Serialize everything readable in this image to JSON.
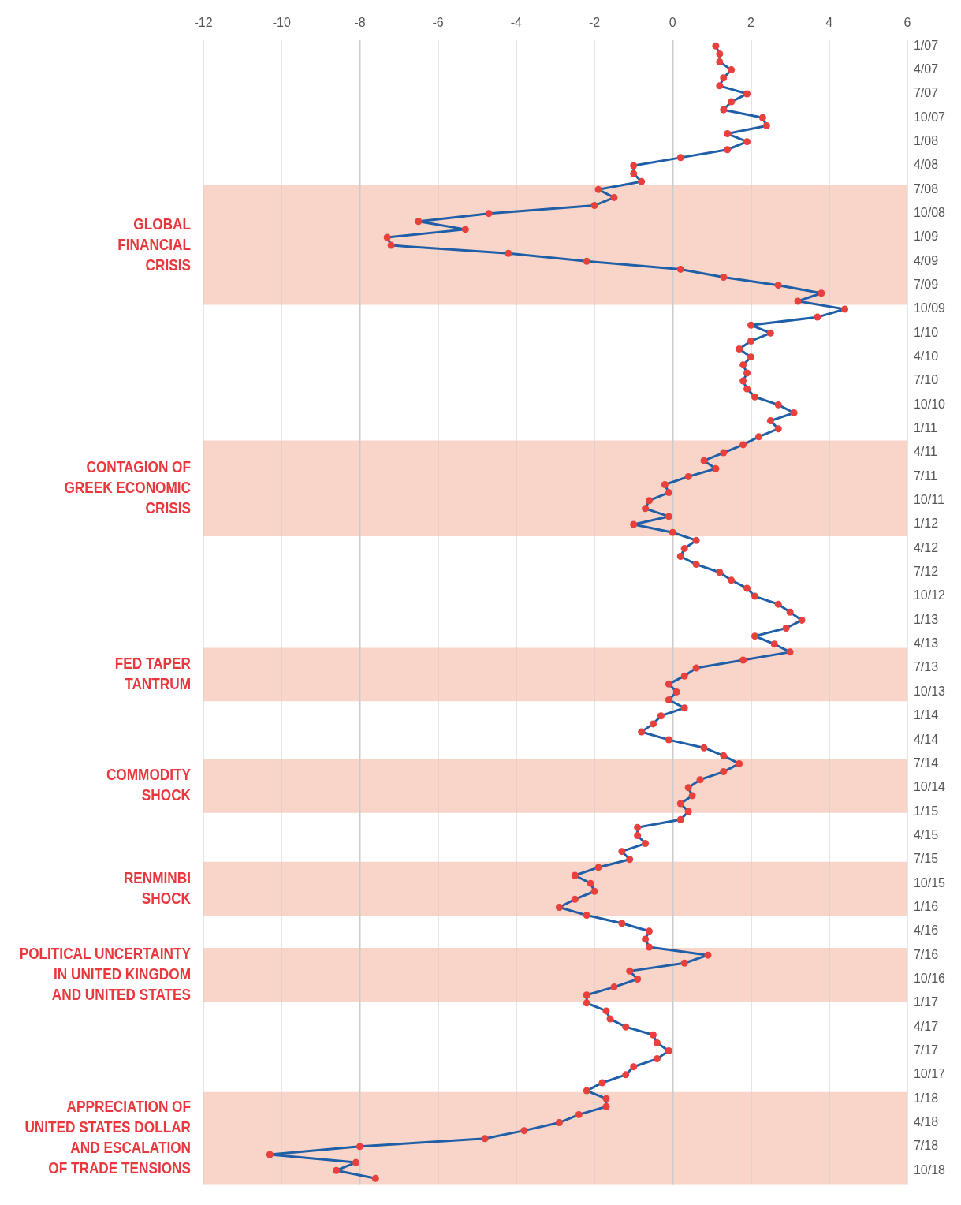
{
  "chart_data": {
    "type": "line",
    "orientation": "horizontal",
    "x": [
      "2007-01",
      "2007-02",
      "2007-03",
      "2007-04",
      "2007-05",
      "2007-06",
      "2007-07",
      "2007-08",
      "2007-09",
      "2007-10",
      "2007-11",
      "2007-12",
      "2008-01",
      "2008-02",
      "2008-03",
      "2008-04",
      "2008-05",
      "2008-06",
      "2008-07",
      "2008-08",
      "2008-09",
      "2008-10",
      "2008-11",
      "2008-12",
      "2009-01",
      "2009-02",
      "2009-03",
      "2009-04",
      "2009-05",
      "2009-06",
      "2009-07",
      "2009-08",
      "2009-09",
      "2009-10",
      "2009-11",
      "2009-12",
      "2010-01",
      "2010-02",
      "2010-03",
      "2010-04",
      "2010-05",
      "2010-06",
      "2010-07",
      "2010-08",
      "2010-09",
      "2010-10",
      "2010-11",
      "2010-12",
      "2011-01",
      "2011-02",
      "2011-03",
      "2011-04",
      "2011-05",
      "2011-06",
      "2011-07",
      "2011-08",
      "2011-09",
      "2011-10",
      "2011-11",
      "2011-12",
      "2012-01",
      "2012-02",
      "2012-03",
      "2012-04",
      "2012-05",
      "2012-06",
      "2012-07",
      "2012-08",
      "2012-09",
      "2012-10",
      "2012-11",
      "2012-12",
      "2013-01",
      "2013-02",
      "2013-03",
      "2013-04",
      "2013-05",
      "2013-06",
      "2013-07",
      "2013-08",
      "2013-09",
      "2013-10",
      "2013-11",
      "2013-12",
      "2014-01",
      "2014-02",
      "2014-03",
      "2014-04",
      "2014-05",
      "2014-06",
      "2014-07",
      "2014-08",
      "2014-09",
      "2014-10",
      "2014-11",
      "2014-12",
      "2015-01",
      "2015-02",
      "2015-03",
      "2015-04",
      "2015-05",
      "2015-06",
      "2015-07",
      "2015-08",
      "2015-09",
      "2015-10",
      "2015-11",
      "2015-12",
      "2016-01",
      "2016-02",
      "2016-03",
      "2016-04",
      "2016-05",
      "2016-06",
      "2016-07",
      "2016-08",
      "2016-09",
      "2016-10",
      "2016-11",
      "2016-12",
      "2017-01",
      "2017-02",
      "2017-03",
      "2017-04",
      "2017-05",
      "2017-06",
      "2017-07",
      "2017-08",
      "2017-09",
      "2017-10",
      "2017-11",
      "2017-12",
      "2018-01",
      "2018-02",
      "2018-03",
      "2018-04",
      "2018-05",
      "2018-06",
      "2018-07",
      "2018-08",
      "2018-09",
      "2018-10",
      "2018-11"
    ],
    "series": [
      {
        "color": "#1f5fa8",
        "values": [
          1.1,
          1.2,
          1.2,
          1.5,
          1.3,
          1.2,
          1.9,
          1.5,
          1.3,
          2.3,
          2.4,
          1.4,
          1.9,
          1.4,
          0.2,
          -1.0,
          -1.0,
          -0.8,
          -1.9,
          -1.5,
          -2.0,
          -4.7,
          -6.5,
          -5.3,
          -7.3,
          -7.2,
          -4.2,
          -2.2,
          0.2,
          1.3,
          2.7,
          3.8,
          3.2,
          4.4,
          3.7,
          2.0,
          2.5,
          2.0,
          1.7,
          2.0,
          1.8,
          1.9,
          1.8,
          1.9,
          2.1,
          2.7,
          3.1,
          2.5,
          2.7,
          2.2,
          1.8,
          1.3,
          0.8,
          1.1,
          0.4,
          -0.2,
          -0.1,
          -0.6,
          -0.7,
          -0.1,
          -1.0,
          0.0,
          0.6,
          0.3,
          0.2,
          0.6,
          1.2,
          1.5,
          1.9,
          2.1,
          2.7,
          3.0,
          3.3,
          2.9,
          2.1,
          2.6,
          3.0,
          1.8,
          0.6,
          0.3,
          -0.1,
          0.1,
          -0.1,
          0.3,
          -0.3,
          -0.5,
          -0.8,
          -0.1,
          0.8,
          1.3,
          1.7,
          1.3,
          0.7,
          0.4,
          0.5,
          0.2,
          0.4,
          0.2,
          -0.9,
          -0.9,
          -0.7,
          -1.3,
          -1.1,
          -1.9,
          -2.5,
          -2.1,
          -2.0,
          -2.5,
          -2.9,
          -2.2,
          -1.3,
          -0.6,
          -0.7,
          -0.6,
          0.9,
          0.3,
          -1.1,
          -0.9,
          -1.5,
          -2.2,
          -2.2,
          -1.7,
          -1.6,
          -1.2,
          -0.5,
          -0.4,
          -0.1,
          -0.4,
          -1.0,
          -1.2,
          -1.8,
          -2.2,
          -1.7,
          -1.7,
          -2.4,
          -2.9,
          -3.8,
          -4.8,
          -8.0,
          -10.3,
          -8.1,
          -8.6,
          -7.6
        ]
      }
    ],
    "xlim": [
      -12,
      6
    ],
    "xticks": [
      -12,
      -10,
      -8,
      -6,
      -4,
      -2,
      0,
      2,
      4,
      6
    ],
    "ylim": [
      "2018-11-25",
      "2006-12-10"
    ],
    "yticks": [
      {
        "value": "2007-01",
        "label": "1/07"
      },
      {
        "value": "2007-04",
        "label": "4/07"
      },
      {
        "value": "2007-07",
        "label": "7/07"
      },
      {
        "value": "2007-10",
        "label": "10/07"
      },
      {
        "value": "2008-01",
        "label": "1/08"
      },
      {
        "value": "2008-04",
        "label": "4/08"
      },
      {
        "value": "2008-07",
        "label": "7/08"
      },
      {
        "value": "2008-10",
        "label": "10/08"
      },
      {
        "value": "2009-01",
        "label": "1/09"
      },
      {
        "value": "2009-04",
        "label": "4/09"
      },
      {
        "value": "2009-07",
        "label": "7/09"
      },
      {
        "value": "2009-10",
        "label": "10/09"
      },
      {
        "value": "2010-01",
        "label": "1/10"
      },
      {
        "value": "2010-04",
        "label": "4/10"
      },
      {
        "value": "2010-07",
        "label": "7/10"
      },
      {
        "value": "2010-10",
        "label": "10/10"
      },
      {
        "value": "2011-01",
        "label": "1/11"
      },
      {
        "value": "2011-04",
        "label": "4/11"
      },
      {
        "value": "2011-07",
        "label": "7/11"
      },
      {
        "value": "2011-10",
        "label": "10/11"
      },
      {
        "value": "2012-01",
        "label": "1/12"
      },
      {
        "value": "2012-04",
        "label": "4/12"
      },
      {
        "value": "2012-07",
        "label": "7/12"
      },
      {
        "value": "2012-10",
        "label": "10/12"
      },
      {
        "value": "2013-01",
        "label": "1/13"
      },
      {
        "value": "2013-04",
        "label": "4/13"
      },
      {
        "value": "2013-07",
        "label": "7/13"
      },
      {
        "value": "2013-10",
        "label": "10/13"
      },
      {
        "value": "2014-01",
        "label": "1/14"
      },
      {
        "value": "2014-04",
        "label": "4/14"
      },
      {
        "value": "2014-07",
        "label": "7/14"
      },
      {
        "value": "2014-10",
        "label": "10/14"
      },
      {
        "value": "2015-01",
        "label": "1/15"
      },
      {
        "value": "2015-04",
        "label": "4/15"
      },
      {
        "value": "2015-07",
        "label": "7/15"
      },
      {
        "value": "2015-10",
        "label": "10/15"
      },
      {
        "value": "2016-01",
        "label": "1/16"
      },
      {
        "value": "2016-04",
        "label": "4/16"
      },
      {
        "value": "2016-07",
        "label": "7/16"
      },
      {
        "value": "2016-10",
        "label": "10/16"
      },
      {
        "value": "2017-01",
        "label": "1/17"
      },
      {
        "value": "2017-04",
        "label": "4/17"
      },
      {
        "value": "2017-07",
        "label": "7/17"
      },
      {
        "value": "2017-10",
        "label": "10/17"
      },
      {
        "value": "2018-01",
        "label": "1/18"
      },
      {
        "value": "2018-04",
        "label": "4/18"
      },
      {
        "value": "2018-07",
        "label": "7/18"
      },
      {
        "value": "2018-10",
        "label": "10/18"
      }
    ],
    "bands": [
      {
        "axis": "y",
        "from": "2008-06-15",
        "to": "2009-09-15",
        "label": "GLOBAL\nFINANCIAL\nCRISIS",
        "color": "#f9d4c8"
      },
      {
        "axis": "y",
        "from": "2011-02-15",
        "to": "2012-02-15",
        "label": "CONTAGION OF\nGREEK ECONOMIC\nCRISIS",
        "color": "#f9d4c8"
      },
      {
        "axis": "y",
        "from": "2013-04-15",
        "to": "2013-11-06",
        "label": "FED TAPER\nTANTRUM",
        "color": "#f9d4c8"
      },
      {
        "axis": "y",
        "from": "2014-06-12",
        "to": "2015-01-06",
        "label": "COMMODITY\nSHOCK",
        "color": "#f9d4c8"
      },
      {
        "axis": "y",
        "from": "2015-07-10",
        "to": "2016-02-03",
        "label": "RENMINBI\nSHOCK",
        "color": "#f9d4c8"
      },
      {
        "axis": "y",
        "from": "2016-06-04",
        "to": "2016-12-28",
        "label": "POLITICAL UNCERTAINTY\nIN UNITED KINGDOM\nAND UNITED STATES",
        "color": "#f9d4c8"
      },
      {
        "axis": "y",
        "from": "2017-12-06",
        "to": "2018-11-25",
        "label": "APPRECIATION OF\nUNITED STATES DOLLAR\nAND ESCALATION\nOF TRADE TENSIONS",
        "color": "#f9d4c8"
      }
    ],
    "grid": "x",
    "marker": "circle",
    "line_style": "solid"
  }
}
